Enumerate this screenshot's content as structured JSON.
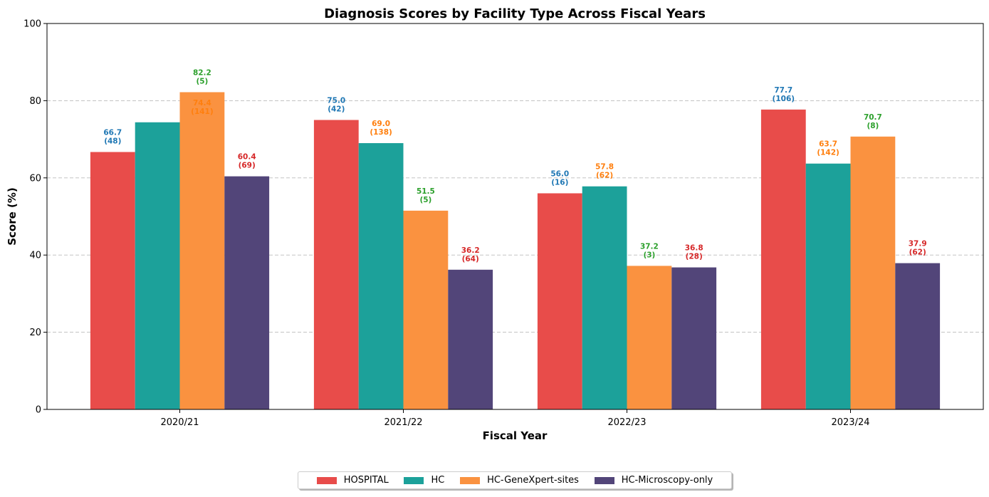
{
  "chart_data": {
    "type": "bar",
    "title": "Diagnosis Scores by Facility Type Across Fiscal Years",
    "xlabel": "Fiscal Year",
    "ylabel": "Score (%)",
    "ylim": [
      0,
      100
    ],
    "yticks": [
      "0",
      "20",
      "40",
      "60",
      "80",
      "100"
    ],
    "grid": "y dashed",
    "legend_position": "bottom-center",
    "categories": [
      "2020/21",
      "2021/22",
      "2022/23",
      "2023/24"
    ],
    "series": [
      {
        "name": "HOSPITAL",
        "color": "#e84c4a",
        "label_color": "#1f77b4",
        "values": [
          66.7,
          75.0,
          56.0,
          77.7
        ],
        "labels": [
          "66.7",
          "75.0",
          "56.0",
          "77.7"
        ],
        "counts": [
          "(48)",
          "(42)",
          "(16)",
          "(106)"
        ]
      },
      {
        "name": "HC",
        "color": "#1ca19a",
        "label_color": "#ff7f0e",
        "values": [
          74.4,
          69.0,
          57.8,
          63.7
        ],
        "labels": [
          "74.4",
          "69.0",
          "57.8",
          "63.7"
        ],
        "counts": [
          "(141)",
          "(138)",
          "(62)",
          "(142)"
        ]
      },
      {
        "name": "HC-GeneXpert-sites",
        "color": "#fa9240",
        "label_color": "#2ca02c",
        "values": [
          82.2,
          51.5,
          37.2,
          70.7
        ],
        "labels": [
          "82.2",
          "51.5",
          "37.2",
          "70.7"
        ],
        "counts": [
          "(5)",
          "(5)",
          "(3)",
          "(8)"
        ]
      },
      {
        "name": "HC-Microscopy-only",
        "color": "#524579",
        "label_color": "#d62728",
        "values": [
          60.4,
          36.2,
          36.8,
          37.9
        ],
        "labels": [
          "60.4",
          "36.2",
          "36.8",
          "37.9"
        ],
        "counts": [
          "(69)",
          "(64)",
          "(28)",
          "(62)"
        ]
      }
    ],
    "annotation_layout": [
      {
        "label_series": 0,
        "y_base": [
          66.7,
          75.0,
          56.0,
          77.7
        ],
        "bar_index": [
          0,
          0,
          0,
          0
        ]
      },
      {
        "label_series": 1,
        "y_base": [
          74.4,
          69.0,
          57.8,
          63.7
        ],
        "bar_index": [
          2,
          1,
          1,
          1
        ]
      },
      {
        "label_series": 2,
        "y_base": [
          82.2,
          51.5,
          37.2,
          70.7
        ],
        "bar_index": [
          2,
          2,
          2,
          2
        ]
      },
      {
        "label_series": 3,
        "y_base": [
          60.4,
          36.2,
          36.8,
          37.9
        ],
        "bar_index": [
          3,
          3,
          3,
          3
        ]
      }
    ]
  }
}
